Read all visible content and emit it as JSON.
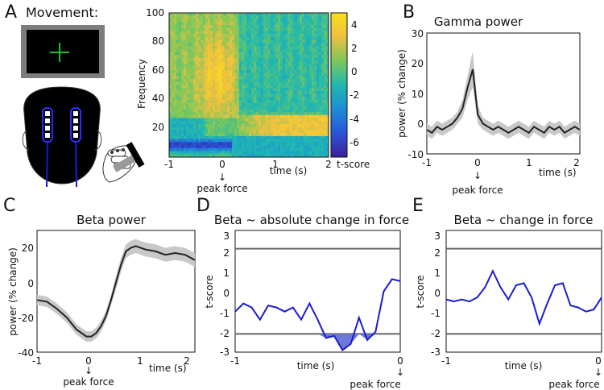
{
  "panels": {
    "A": {
      "letter": "A",
      "movement_label": "Movement:",
      "peak_label": "peak force",
      "arrow": "↓"
    },
    "B": {
      "letter": "B"
    },
    "C": {
      "letter": "C"
    },
    "D": {
      "letter": "D"
    },
    "E": {
      "letter": "E"
    }
  },
  "colors": {
    "line_black": "#222222",
    "band_grey": "#c8c8c8",
    "line_blue": "#1b1bd0",
    "fill_blue": "#6b78d8",
    "threshold_grey": "#666666",
    "cmap": [
      "#3b1f9b",
      "#2a56d8",
      "#1c8fd6",
      "#20b8b0",
      "#7cc85a",
      "#f1c040",
      "#f7e11b"
    ]
  },
  "chart_data": [
    {
      "id": "A",
      "type": "heatmap",
      "title": "",
      "xlabel": "time (s)",
      "ylabel": "Frequency",
      "xlim": [
        -1,
        2
      ],
      "ylim": [
        5,
        100
      ],
      "xticks": [
        "-1",
        "0",
        "1",
        "2"
      ],
      "yticks": [
        "20",
        "40",
        "60",
        "80",
        "100"
      ],
      "colorbar": {
        "label": "t-score",
        "range": [
          -7,
          5
        ],
        "ticks": [
          "4",
          "2",
          "0",
          "-2",
          "-4",
          "-6"
        ]
      },
      "peak_label": "peak force"
    },
    {
      "id": "B",
      "type": "line",
      "title": "Gamma power",
      "xlabel": "time (s)",
      "ylabel": "power (% change)",
      "xlim": [
        -1,
        2
      ],
      "ylim": [
        -10,
        30
      ],
      "xticks": [
        "-1",
        "0",
        "1",
        "2"
      ],
      "yticks": [
        "-10",
        "0",
        "10",
        "20",
        "30"
      ],
      "peak_label": "peak force",
      "x": [
        -1.0,
        -0.9,
        -0.8,
        -0.7,
        -0.6,
        -0.5,
        -0.4,
        -0.3,
        -0.2,
        -0.1,
        0.0,
        0.1,
        0.2,
        0.3,
        0.4,
        0.5,
        0.6,
        0.7,
        0.8,
        0.9,
        1.0,
        1.1,
        1.2,
        1.3,
        1.4,
        1.5,
        1.6,
        1.7,
        1.8,
        1.9,
        2.0
      ],
      "y": [
        -2,
        -3,
        -1,
        -2,
        -1,
        0,
        2,
        5,
        12,
        18,
        3,
        0,
        -1,
        -2,
        -1,
        -2,
        -3,
        -2,
        -1,
        -2,
        -3,
        -1,
        -2,
        -3,
        -1,
        -2,
        -1,
        -3,
        -2,
        -1,
        -2
      ],
      "err": [
        2,
        2,
        2,
        2,
        2,
        2,
        2,
        3,
        4,
        6,
        3,
        2,
        2,
        2,
        2,
        2,
        2,
        2,
        2,
        2,
        2,
        2,
        2,
        2,
        2,
        2,
        2,
        2,
        2,
        2,
        2
      ]
    },
    {
      "id": "C",
      "type": "line",
      "title": "Beta power",
      "xlabel": "time (s)",
      "ylabel": "power (% change)",
      "xlim": [
        -1,
        2.2
      ],
      "ylim": [
        -40,
        30
      ],
      "xticks": [
        "-1",
        "0",
        "1",
        "2"
      ],
      "yticks": [
        "-40",
        "-20",
        "0",
        "20"
      ],
      "peak_label": "peak force",
      "x": [
        -1.0,
        -0.8,
        -0.6,
        -0.4,
        -0.2,
        0.0,
        0.1,
        0.2,
        0.3,
        0.4,
        0.5,
        0.6,
        0.7,
        0.8,
        0.9,
        1.0,
        1.2,
        1.4,
        1.6,
        1.8,
        2.0,
        2.2
      ],
      "y": [
        -10,
        -11,
        -15,
        -20,
        -27,
        -31,
        -31,
        -29,
        -25,
        -19,
        -10,
        0,
        10,
        18,
        20,
        21,
        19,
        18,
        16,
        17,
        16,
        13
      ],
      "err": [
        3,
        3,
        3,
        3,
        3,
        3,
        3,
        3,
        3,
        3,
        3,
        4,
        4,
        4,
        4,
        4,
        4,
        4,
        4,
        4,
        4,
        4
      ]
    },
    {
      "id": "D",
      "type": "line",
      "title": "Beta ~ absolute change in force",
      "xlabel": "time (s)",
      "ylabel": "t-score",
      "xlim": [
        -1,
        0
      ],
      "ylim": [
        -3,
        3
      ],
      "xticks": [
        "-1",
        "0"
      ],
      "yticks": [
        "3",
        "2",
        "1",
        "0",
        "-1",
        "-2",
        "-3"
      ],
      "thresholds": [
        2.1,
        -2.1
      ],
      "peak_label": "peak force",
      "x": [
        -1.0,
        -0.95,
        -0.9,
        -0.85,
        -0.8,
        -0.75,
        -0.7,
        -0.65,
        -0.6,
        -0.55,
        -0.5,
        -0.45,
        -0.4,
        -0.35,
        -0.3,
        -0.25,
        -0.2,
        -0.15,
        -0.1,
        -0.05,
        0.0
      ],
      "y": [
        -1.0,
        -0.6,
        -0.8,
        -1.4,
        -0.7,
        -0.8,
        -1.0,
        -0.8,
        -1.4,
        -0.6,
        -1.4,
        -2.3,
        -2.2,
        -2.9,
        -2.6,
        -1.3,
        -2.4,
        -2.0,
        0.0,
        0.6,
        0.5
      ]
    },
    {
      "id": "E",
      "type": "line",
      "title": "Beta ~ change in force",
      "xlabel": "time (s)",
      "ylabel": "t-score",
      "xlim": [
        -1,
        0
      ],
      "ylim": [
        -3,
        3
      ],
      "xticks": [
        "-1",
        "0"
      ],
      "yticks": [
        "3",
        "2",
        "1",
        "0",
        "-1",
        "-2",
        "-3"
      ],
      "thresholds": [
        2.1,
        -2.1
      ],
      "peak_label": "peak force",
      "x": [
        -1.0,
        -0.95,
        -0.9,
        -0.85,
        -0.8,
        -0.75,
        -0.7,
        -0.65,
        -0.6,
        -0.55,
        -0.5,
        -0.45,
        -0.4,
        -0.35,
        -0.3,
        -0.25,
        -0.2,
        -0.15,
        -0.1,
        -0.05,
        0.0
      ],
      "y": [
        -0.4,
        -0.5,
        -0.4,
        -0.5,
        -0.3,
        0.2,
        1.0,
        0.2,
        -0.4,
        0.3,
        0.4,
        -0.3,
        -1.6,
        -0.6,
        0.3,
        0.4,
        -0.7,
        -0.8,
        -1.0,
        -0.9,
        -0.3
      ]
    }
  ]
}
